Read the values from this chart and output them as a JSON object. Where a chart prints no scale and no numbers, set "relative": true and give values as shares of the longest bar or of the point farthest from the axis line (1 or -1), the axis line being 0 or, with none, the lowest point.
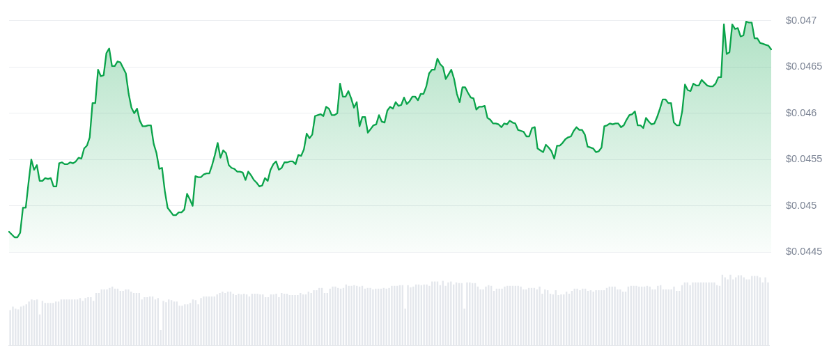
{
  "chart_data": [
    {
      "type": "area",
      "categories": [
        null,
        null,
        null,
        null,
        null,
        null,
        null,
        null,
        null,
        null,
        null,
        null,
        null,
        null,
        null,
        null,
        null,
        null,
        null,
        null,
        null,
        null,
        null,
        null,
        null,
        null,
        null,
        null,
        null,
        null,
        null,
        null,
        null,
        null,
        null,
        null,
        null,
        null,
        null,
        null,
        null,
        null,
        null,
        null,
        null,
        null,
        null,
        null,
        null,
        null,
        null,
        null,
        null,
        null,
        null,
        null,
        null,
        null,
        null,
        null,
        null,
        null,
        null,
        null,
        null,
        null,
        null,
        null,
        null,
        null,
        null,
        null,
        null,
        null,
        null,
        null,
        null,
        null,
        null,
        null,
        null,
        null,
        null,
        null,
        null,
        null,
        null,
        null,
        null,
        null,
        null,
        null,
        null,
        null,
        null,
        null,
        null,
        null,
        null,
        null,
        null,
        null,
        null,
        null,
        null,
        null,
        null,
        null,
        null,
        null,
        null,
        null,
        null,
        null,
        null,
        null,
        null,
        null,
        null,
        null,
        null,
        null,
        null,
        null,
        null,
        null,
        null,
        null,
        null,
        null,
        null,
        null,
        null,
        null,
        null,
        null,
        null,
        null,
        null,
        null,
        null,
        null,
        null,
        null,
        null,
        null,
        null,
        null,
        null,
        null,
        null,
        null,
        null,
        null,
        null,
        null,
        null,
        null,
        null,
        null,
        null,
        null,
        null,
        null,
        null,
        null,
        null,
        null,
        null,
        null,
        null,
        null,
        null,
        null,
        null,
        null,
        null,
        null,
        null,
        null,
        null,
        null,
        null,
        null,
        null,
        null,
        null,
        null,
        null,
        null,
        null,
        null,
        null,
        null,
        null,
        null,
        null,
        null,
        null,
        null,
        null,
        null,
        null,
        null,
        null,
        null,
        null,
        null,
        null,
        null,
        null,
        null,
        null,
        null,
        null,
        null,
        null,
        null,
        null,
        null,
        null,
        null,
        null,
        null,
        null,
        null,
        null,
        null,
        null,
        null,
        null,
        null,
        null,
        null,
        null,
        null,
        null,
        null,
        null,
        null,
        null,
        null,
        null,
        null,
        null,
        null,
        null,
        null,
        null,
        null,
        null,
        null,
        null,
        null,
        null,
        null,
        null,
        null,
        null,
        null,
        null,
        null,
        null,
        null,
        null,
        null,
        null,
        null,
        null,
        null,
        null,
        null,
        null,
        null,
        null
      ],
      "series": [
        {
          "color": "#0aa34a",
          "values": [
            0.04472,
            0.04469,
            0.04466,
            0.04466,
            0.04471,
            0.04498,
            0.04498,
            0.04525,
            0.0455,
            0.04539,
            0.04544,
            0.04527,
            0.04527,
            0.0453,
            0.04529,
            0.0453,
            0.04521,
            0.04521,
            0.04546,
            0.04547,
            0.04545,
            0.04545,
            0.04547,
            0.04546,
            0.04548,
            0.04552,
            0.04551,
            0.04562,
            0.04565,
            0.04574,
            0.04611,
            0.04611,
            0.04647,
            0.0464,
            0.04641,
            0.04665,
            0.0467,
            0.04651,
            0.04651,
            0.04656,
            0.04655,
            0.04649,
            0.04643,
            0.04621,
            0.04606,
            0.046,
            0.04605,
            0.04592,
            0.04586,
            0.04586,
            0.04587,
            0.04587,
            0.04567,
            0.04557,
            0.0454,
            0.04541,
            0.04516,
            0.04498,
            0.04494,
            0.0449,
            0.0449,
            0.04493,
            0.04493,
            0.04496,
            0.04513,
            0.04507,
            0.045,
            0.04532,
            0.04531,
            0.04531,
            0.04534,
            0.04535,
            0.04535,
            0.04544,
            0.04555,
            0.04568,
            0.04552,
            0.0456,
            0.04557,
            0.04544,
            0.04541,
            0.0454,
            0.04537,
            0.04537,
            0.04536,
            0.04528,
            0.04537,
            0.04533,
            0.04528,
            0.04525,
            0.04521,
            0.04522,
            0.0453,
            0.04527,
            0.04539,
            0.04545,
            0.04548,
            0.04539,
            0.04541,
            0.04547,
            0.04547,
            0.04548,
            0.04548,
            0.04545,
            0.04555,
            0.04554,
            0.04561,
            0.04578,
            0.04573,
            0.04577,
            0.04597,
            0.04598,
            0.04599,
            0.04597,
            0.04607,
            0.04605,
            0.04598,
            0.04598,
            0.046,
            0.04632,
            0.04618,
            0.04618,
            0.04624,
            0.04616,
            0.04606,
            0.04612,
            0.04586,
            0.04596,
            0.04596,
            0.04579,
            0.04583,
            0.04587,
            0.04588,
            0.04598,
            0.04591,
            0.0459,
            0.04603,
            0.04607,
            0.04605,
            0.04612,
            0.04608,
            0.04609,
            0.04617,
            0.0461,
            0.04613,
            0.04618,
            0.04618,
            0.04614,
            0.04621,
            0.04621,
            0.04629,
            0.04643,
            0.04647,
            0.04647,
            0.04659,
            0.04653,
            0.0465,
            0.04637,
            0.04642,
            0.04647,
            0.04637,
            0.04621,
            0.04612,
            0.04628,
            0.04628,
            0.04622,
            0.04617,
            0.04616,
            0.04604,
            0.04607,
            0.04607,
            0.04608,
            0.04595,
            0.04593,
            0.04589,
            0.04589,
            0.04588,
            0.04585,
            0.04589,
            0.04588,
            0.04592,
            0.0459,
            0.04589,
            0.04582,
            0.04581,
            0.0458,
            0.04575,
            0.04575,
            0.04584,
            0.04585,
            0.04562,
            0.0456,
            0.04558,
            0.04566,
            0.04563,
            0.04559,
            0.04551,
            0.04565,
            0.04565,
            0.04568,
            0.04572,
            0.04574,
            0.04575,
            0.04581,
            0.04585,
            0.04582,
            0.04582,
            0.04577,
            0.04564,
            0.04563,
            0.04562,
            0.04558,
            0.04559,
            0.04563,
            0.04586,
            0.04587,
            0.04589,
            0.04588,
            0.04589,
            0.04589,
            0.04585,
            0.04587,
            0.04593,
            0.04598,
            0.04599,
            0.04602,
            0.04587,
            0.04587,
            0.04584,
            0.04595,
            0.04591,
            0.04588,
            0.04589,
            0.04596,
            0.04605,
            0.04615,
            0.04615,
            0.04611,
            0.04611,
            0.0459,
            0.04587,
            0.04587,
            0.04602,
            0.04631,
            0.04625,
            0.04624,
            0.04632,
            0.0463,
            0.0463,
            0.04636,
            0.04633,
            0.0463,
            0.04629,
            0.04629,
            0.04632,
            0.04639,
            0.04639,
            0.04696,
            0.04664,
            0.04666,
            0.04696,
            0.04691,
            0.04692,
            0.04683,
            0.04684,
            0.04699,
            0.04698,
            0.04698,
            0.04681,
            0.04681,
            0.04676,
            0.04675,
            0.04674,
            0.04673,
            0.04669
          ]
        }
      ],
      "ylim": [
        0.0445,
        0.047
      ],
      "yticks": [
        {
          "value": 0.0445,
          "label": "$0.0445"
        },
        {
          "value": 0.045,
          "label": "$0.045"
        },
        {
          "value": 0.0455,
          "label": "$0.0455"
        },
        {
          "value": 0.046,
          "label": "$0.046"
        },
        {
          "value": 0.0465,
          "label": "$0.0465"
        },
        {
          "value": 0.047,
          "label": "$0.047"
        }
      ],
      "grid": "y"
    },
    {
      "type": "bar",
      "relative": true,
      "color": "#e4e7ec",
      "categories": [
        null,
        null,
        null,
        null,
        null,
        null,
        null,
        null,
        null,
        null,
        null,
        null,
        null,
        null,
        null,
        null,
        null,
        null,
        null,
        null,
        null,
        null,
        null,
        null,
        null,
        null,
        null,
        null,
        null,
        null,
        null,
        null,
        null,
        null,
        null,
        null,
        null,
        null,
        null,
        null,
        null,
        null,
        null,
        null,
        null,
        null,
        null,
        null,
        null,
        null,
        null,
        null,
        null,
        null,
        null,
        null,
        null,
        null,
        null,
        null,
        null,
        null,
        null,
        null,
        null,
        null,
        null,
        null,
        null,
        null,
        null,
        null,
        null,
        null,
        null,
        null,
        null,
        null,
        null,
        null,
        null,
        null,
        null,
        null,
        null,
        null,
        null,
        null,
        null,
        null,
        null,
        null,
        null,
        null,
        null,
        null,
        null,
        null,
        null,
        null,
        null,
        null,
        null,
        null,
        null,
        null,
        null,
        null,
        null,
        null,
        null,
        null,
        null,
        null,
        null,
        null,
        null,
        null,
        null,
        null,
        null,
        null,
        null,
        null,
        null,
        null,
        null,
        null,
        null,
        null,
        null,
        null,
        null,
        null,
        null,
        null,
        null,
        null,
        null,
        null,
        null,
        null,
        null,
        null,
        null,
        null,
        null,
        null,
        null,
        null,
        null,
        null,
        null,
        null,
        null,
        null,
        null,
        null,
        null,
        null,
        null,
        null,
        null,
        null,
        null,
        null,
        null,
        null,
        null,
        null,
        null,
        null,
        null,
        null,
        null,
        null,
        null,
        null,
        null,
        null,
        null,
        null,
        null,
        null,
        null,
        null,
        null,
        null,
        null,
        null,
        null,
        null,
        null,
        null,
        null,
        null,
        null,
        null,
        null,
        null,
        null,
        null,
        null,
        null,
        null,
        null,
        null,
        null,
        null,
        null,
        null,
        null,
        null,
        null,
        null,
        null,
        null,
        null,
        null,
        null,
        null,
        null,
        null,
        null,
        null,
        null,
        null,
        null,
        null,
        null,
        null,
        null,
        null,
        null,
        null,
        null,
        null,
        null,
        null,
        null,
        null,
        null,
        null,
        null,
        null,
        null,
        null,
        null,
        null,
        null,
        null,
        null,
        null,
        null,
        null,
        null,
        null,
        null,
        null,
        null,
        null,
        null,
        null,
        null,
        null,
        null,
        null,
        null,
        null,
        null,
        null,
        null,
        null,
        null,
        null,
        null,
        null,
        null,
        null,
        null,
        null,
        null,
        null
      ],
      "values": [
        0.5,
        0.55,
        0.52,
        0.51,
        0.55,
        0.56,
        0.58,
        0.62,
        0.65,
        0.64,
        0.65,
        0.44,
        0.63,
        0.6,
        0.6,
        0.6,
        0.6,
        0.62,
        0.62,
        0.65,
        0.65,
        0.65,
        0.65,
        0.65,
        0.65,
        0.65,
        0.67,
        0.63,
        0.67,
        0.68,
        0.68,
        0.63,
        0.74,
        0.74,
        0.79,
        0.79,
        0.79,
        0.81,
        0.83,
        0.8,
        0.8,
        0.77,
        0.77,
        0.79,
        0.79,
        0.76,
        0.74,
        0.74,
        0.74,
        0.65,
        0.68,
        0.68,
        0.69,
        0.69,
        0.65,
        0.67,
        0.22,
        0.63,
        0.61,
        0.65,
        0.64,
        0.62,
        0.62,
        0.56,
        0.56,
        0.58,
        0.58,
        0.6,
        0.65,
        0.64,
        0.58,
        0.67,
        0.69,
        0.69,
        0.69,
        0.69,
        0.69,
        0.72,
        0.74,
        0.76,
        0.74,
        0.76,
        0.76,
        0.73,
        0.71,
        0.73,
        0.72,
        0.73,
        0.72,
        0.69,
        0.73,
        0.73,
        0.73,
        0.72,
        0.72,
        0.68,
        0.68,
        0.72,
        0.72,
        0.73,
        0.68,
        0.74,
        0.73,
        0.73,
        0.71,
        0.71,
        0.71,
        0.71,
        0.74,
        0.72,
        0.72,
        0.76,
        0.74,
        0.78,
        0.78,
        0.81,
        0.81,
        0.74,
        0.74,
        0.8,
        0.83,
        0.83,
        0.81,
        0.8,
        0.81,
        0.86,
        0.84,
        0.84,
        0.85,
        0.84,
        0.83,
        0.84,
        0.8,
        0.81,
        0.81,
        0.79,
        0.8,
        0.8,
        0.8,
        0.81,
        0.8,
        0.81,
        0.84,
        0.84,
        0.84,
        0.85,
        0.85,
        0.52,
        0.85,
        0.82,
        0.83,
        0.86,
        0.86,
        0.85,
        0.86,
        0.86,
        0.84,
        0.9,
        0.9,
        0.9,
        0.85,
        0.91,
        0.84,
        0.89,
        0.9,
        0.86,
        0.89,
        0.88,
        0.88,
        0.52,
        0.89,
        0.89,
        0.88,
        0.88,
        0.83,
        0.79,
        0.79,
        0.83,
        0.85,
        0.84,
        0.77,
        0.8,
        0.8,
        0.8,
        0.83,
        0.84,
        0.84,
        0.84,
        0.84,
        0.84,
        0.83,
        0.79,
        0.79,
        0.81,
        0.81,
        0.81,
        0.79,
        0.83,
        0.73,
        0.79,
        0.78,
        0.73,
        0.72,
        0.78,
        0.71,
        0.72,
        0.72,
        0.76,
        0.73,
        0.77,
        0.8,
        0.8,
        0.78,
        0.8,
        0.8,
        0.77,
        0.78,
        0.76,
        0.78,
        0.78,
        0.78,
        0.78,
        0.81,
        0.83,
        0.83,
        0.83,
        0.79,
        0.79,
        0.76,
        0.76,
        0.83,
        0.84,
        0.84,
        0.84,
        0.83,
        0.83,
        0.83,
        0.84,
        0.83,
        0.79,
        0.79,
        0.84,
        0.85,
        0.79,
        0.79,
        0.79,
        0.79,
        0.83,
        0.77,
        0.77,
        0.85,
        0.89,
        0.89,
        0.85,
        0.89,
        0.89,
        0.89,
        0.89,
        0.89,
        0.89,
        0.89,
        0.89,
        0.89,
        0.85,
        0.84,
        1.0,
        0.96,
        0.93,
        1.0,
        0.93,
        0.96,
        0.99,
        0.99,
        0.96,
        0.93,
        0.93,
        0.98,
        0.98,
        0.98,
        0.96,
        0.89,
        0.96,
        0.89
      ]
    }
  ]
}
